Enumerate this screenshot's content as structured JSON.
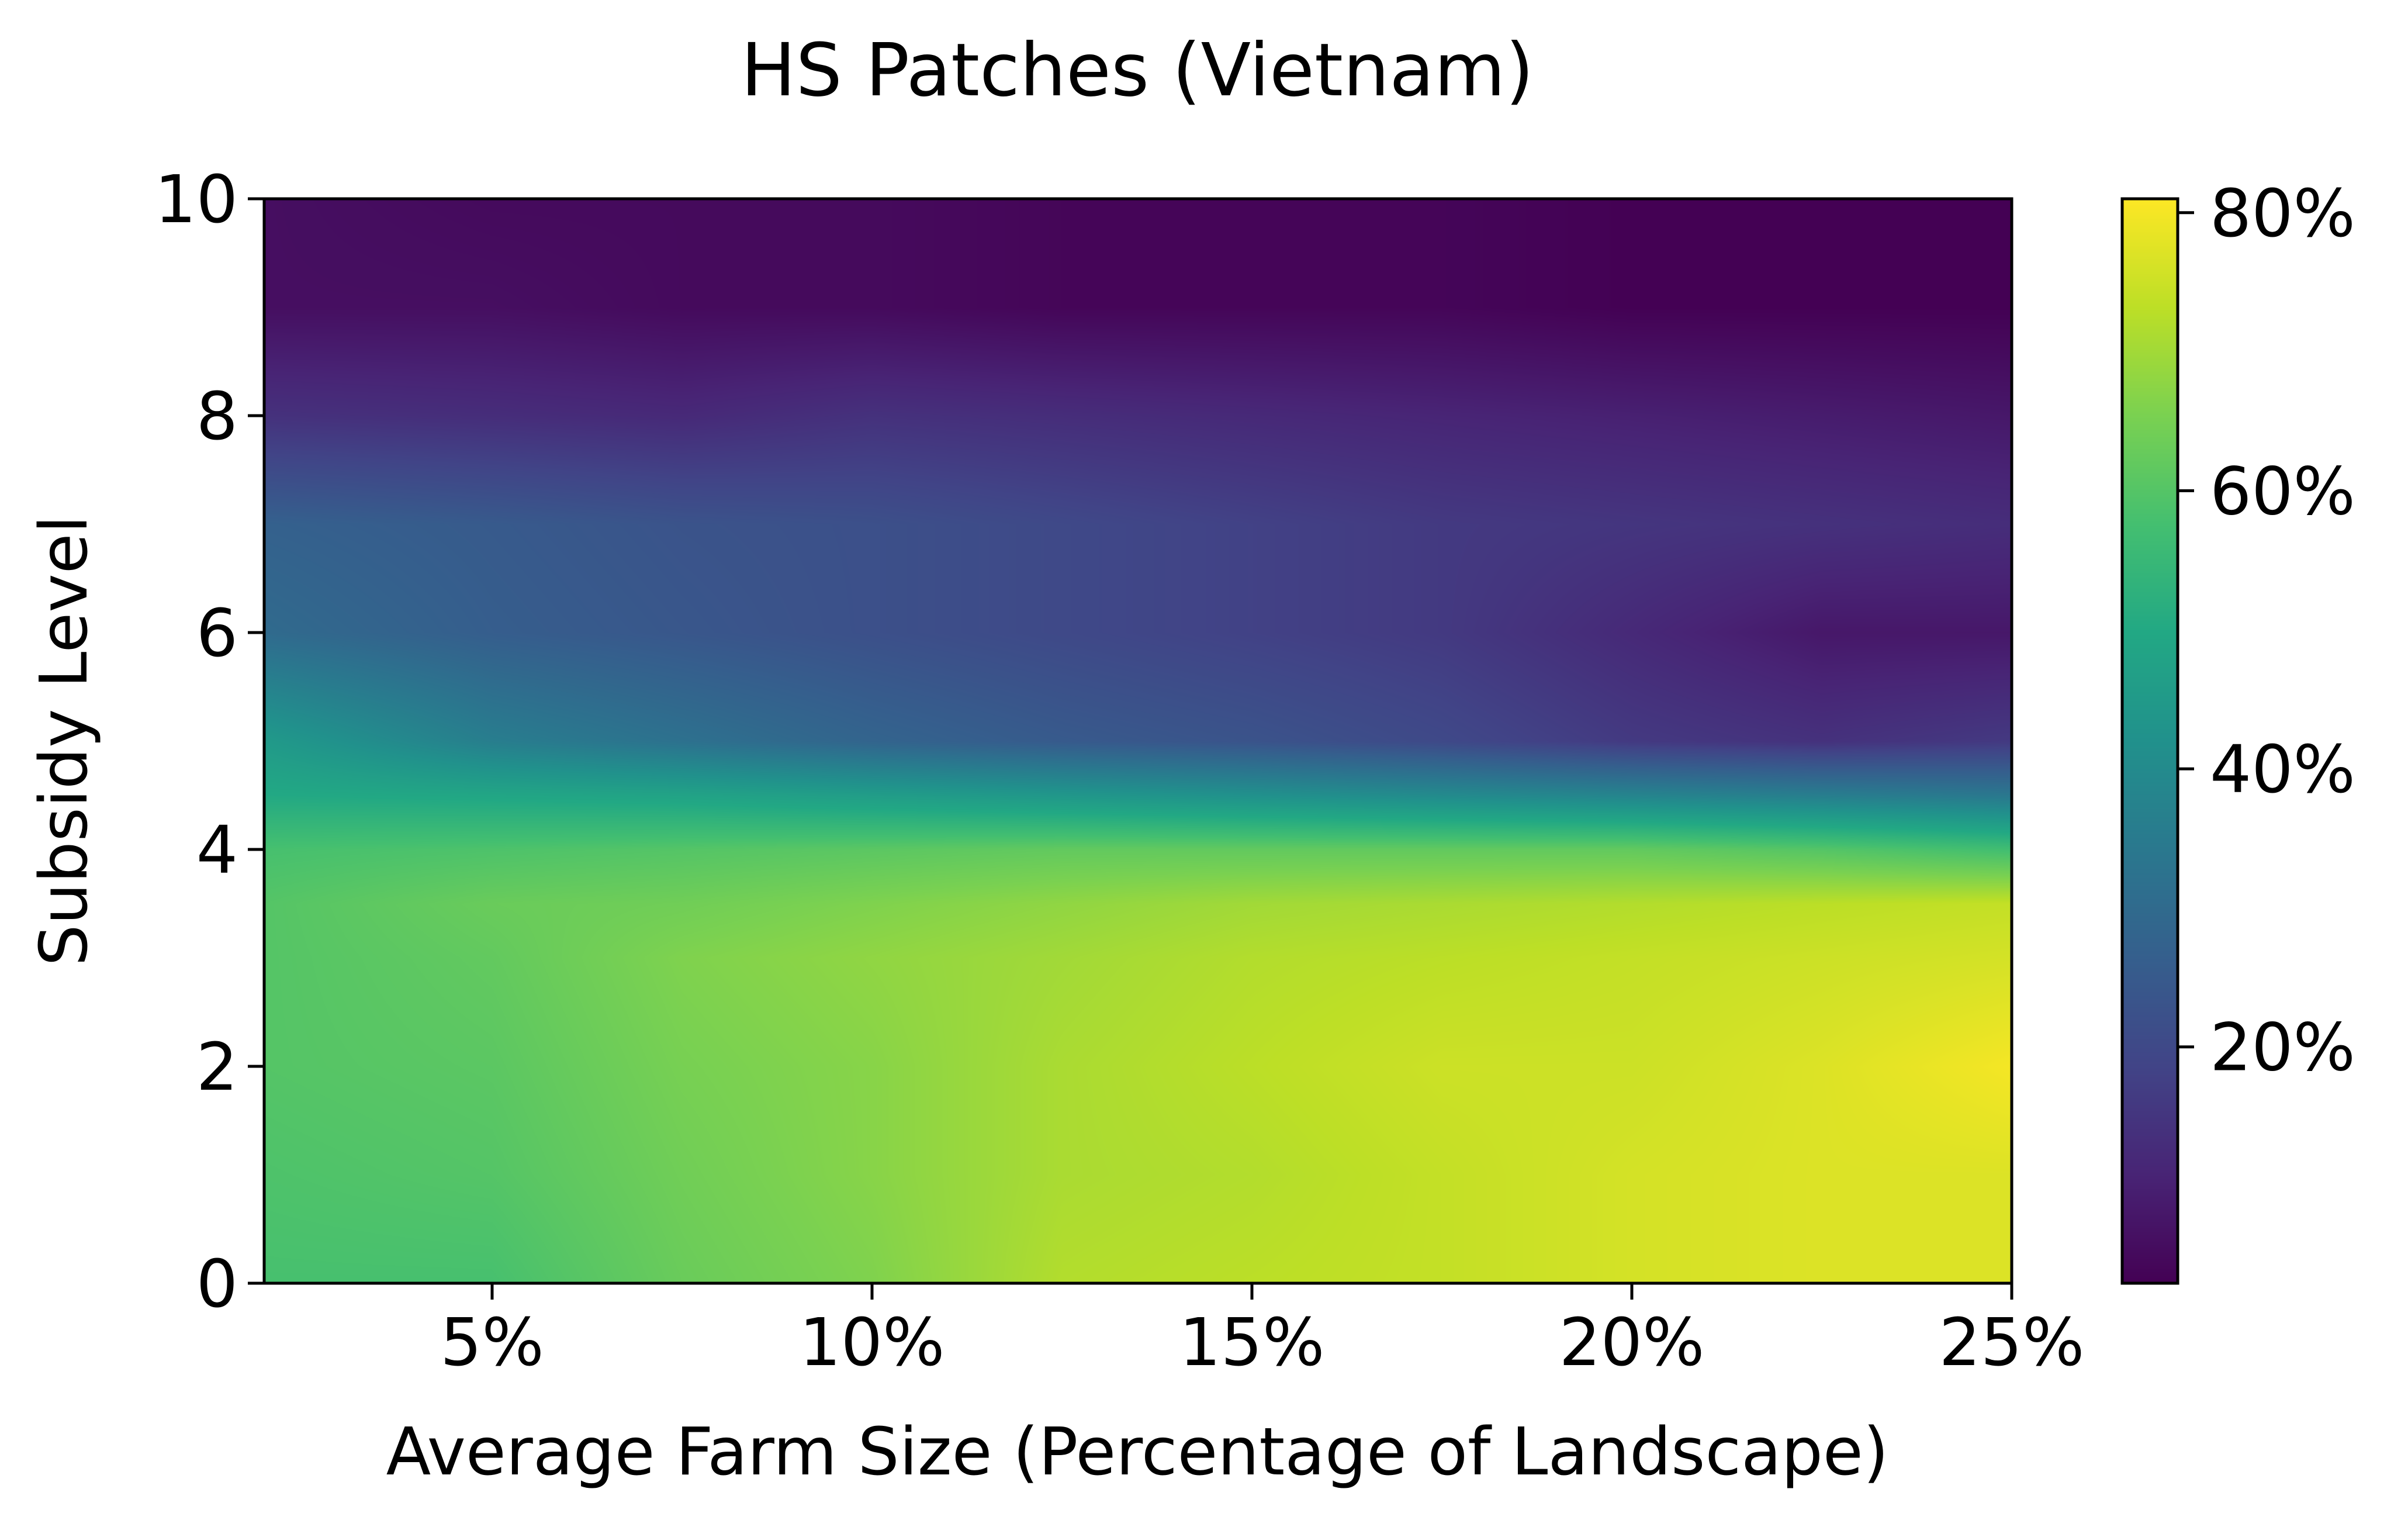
{
  "chart_data": {
    "type": "heatmap",
    "title": "HS Patches (Vietnam)",
    "xlabel": "Average Farm Size (Percentage of Landscape)",
    "ylabel": "Subsidy Level",
    "xlim": [
      2,
      25
    ],
    "ylim": [
      0,
      10
    ],
    "x_ticks": [
      {
        "value": 5,
        "label": "5%"
      },
      {
        "value": 10,
        "label": "10%"
      },
      {
        "value": 15,
        "label": "15%"
      },
      {
        "value": 20,
        "label": "20%"
      },
      {
        "value": 25,
        "label": "25%"
      }
    ],
    "y_ticks": [
      {
        "value": 0,
        "label": "0"
      },
      {
        "value": 2,
        "label": "2"
      },
      {
        "value": 4,
        "label": "4"
      },
      {
        "value": 6,
        "label": "6"
      },
      {
        "value": 8,
        "label": "8"
      },
      {
        "value": 10,
        "label": "10"
      }
    ],
    "colorbar": {
      "colormap": "viridis",
      "range": [
        3,
        81
      ],
      "ticks": [
        {
          "value": 20,
          "label": "20%"
        },
        {
          "value": 40,
          "label": "40%"
        },
        {
          "value": 60,
          "label": "60%"
        },
        {
          "value": 80,
          "label": "80%"
        }
      ]
    },
    "x": [
      2,
      5,
      7.5,
      10,
      12.5,
      15,
      17.5,
      20,
      22.5,
      25
    ],
    "y": [
      0,
      1,
      2,
      3,
      3.5,
      4,
      4.5,
      5,
      6,
      7,
      8,
      9,
      10
    ],
    "z": [
      [
        58,
        58,
        63,
        66,
        72,
        73,
        74,
        76,
        77,
        77
      ],
      [
        59,
        60,
        64,
        67,
        71,
        72,
        74,
        76,
        77,
        77
      ],
      [
        60,
        61,
        65,
        67,
        71,
        73,
        75,
        75,
        77,
        80
      ],
      [
        60,
        62,
        66,
        68,
        70,
        72,
        73,
        74,
        75,
        76
      ],
      [
        60,
        63,
        64,
        66,
        68,
        70,
        71,
        72,
        73,
        74
      ],
      [
        58,
        59,
        60,
        61,
        62,
        62,
        62,
        62,
        60,
        57
      ],
      [
        50,
        49,
        48,
        46,
        44,
        42,
        40,
        38,
        36,
        34
      ],
      [
        45,
        36,
        32,
        28,
        25,
        23,
        20,
        16,
        14,
        16
      ],
      [
        30,
        26,
        24,
        22,
        20,
        18,
        16,
        12,
        8,
        8
      ],
      [
        27,
        25,
        23,
        22,
        20,
        18,
        16,
        15,
        14,
        13
      ],
      [
        14,
        13,
        12,
        14,
        13,
        12,
        11,
        10,
        9,
        8
      ],
      [
        6,
        6,
        5,
        5,
        4,
        4,
        4,
        3,
        3,
        3
      ],
      [
        6,
        5,
        5,
        5,
        4,
        4,
        4,
        3,
        3,
        3
      ]
    ]
  }
}
